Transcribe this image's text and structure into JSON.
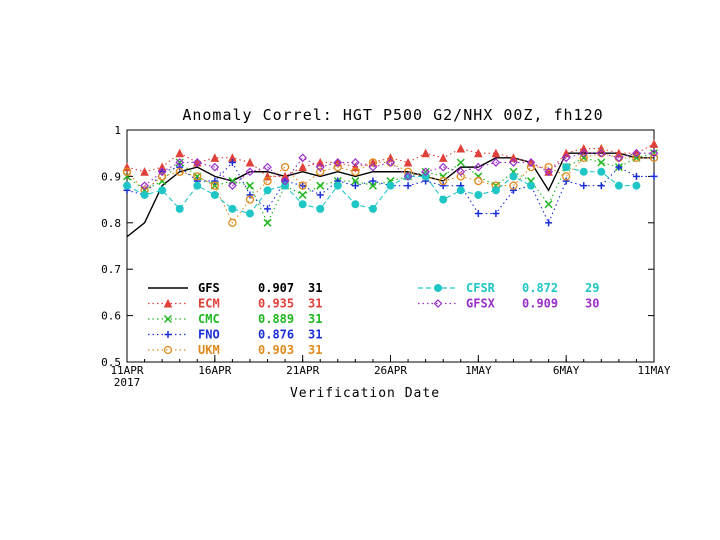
{
  "chart_data": {
    "type": "line",
    "title": "Anomaly Correl: HGT P500 G2/NHX 00Z, fh120",
    "xlabel": "Verification Date",
    "ylabel": "",
    "ylim": [
      0.5,
      1.0
    ],
    "yticks": [
      "0.5",
      "0.6",
      "0.7",
      "0.8",
      "0.9",
      "1"
    ],
    "x_ticks": [
      {
        "day": 0,
        "label": "11APR",
        "sublabel": "2017"
      },
      {
        "day": 5,
        "label": "16APR"
      },
      {
        "day": 10,
        "label": "21APR"
      },
      {
        "day": 15,
        "label": "26APR"
      },
      {
        "day": 20,
        "label": "1MAY"
      },
      {
        "day": 25,
        "label": "6MAY"
      },
      {
        "day": 30,
        "label": "11MAY"
      }
    ],
    "x": [
      0,
      1,
      2,
      3,
      4,
      5,
      6,
      7,
      8,
      9,
      10,
      11,
      12,
      13,
      14,
      15,
      16,
      17,
      18,
      19,
      20,
      21,
      22,
      23,
      24,
      25,
      26,
      27,
      28,
      29,
      30
    ],
    "series": [
      {
        "name": "GFS",
        "mean": "0.907",
        "count": "31",
        "color": "#000000",
        "marker": "none",
        "dash": "solid",
        "values": [
          0.77,
          0.8,
          0.88,
          0.91,
          0.92,
          0.9,
          0.89,
          0.91,
          0.91,
          0.9,
          0.91,
          0.9,
          0.91,
          0.9,
          0.91,
          0.91,
          0.91,
          0.9,
          0.89,
          0.92,
          0.92,
          0.94,
          0.94,
          0.93,
          0.87,
          0.95,
          0.95,
          0.95,
          0.95,
          0.94,
          0.94
        ]
      },
      {
        "name": "ECM",
        "mean": "0.935",
        "count": "31",
        "color": "#e0403a",
        "marker": "triangle",
        "dash": "dotted",
        "values": [
          0.92,
          0.91,
          0.92,
          0.95,
          0.93,
          0.94,
          0.94,
          0.93,
          0.9,
          0.9,
          0.92,
          0.93,
          0.93,
          0.92,
          0.93,
          0.94,
          0.93,
          0.95,
          0.94,
          0.96,
          0.95,
          0.95,
          0.94,
          0.93,
          0.91,
          0.95,
          0.96,
          0.96,
          0.95,
          0.95,
          0.97
        ]
      },
      {
        "name": "CMC",
        "mean": "0.889",
        "count": "31",
        "color": "#22b822",
        "marker": "x",
        "dash": "dotted",
        "values": [
          0.9,
          0.87,
          0.89,
          0.93,
          0.9,
          0.88,
          0.89,
          0.88,
          0.8,
          0.88,
          0.86,
          0.88,
          0.89,
          0.89,
          0.88,
          0.89,
          0.9,
          0.91,
          0.9,
          0.93,
          0.9,
          0.88,
          0.91,
          0.89,
          0.84,
          0.92,
          0.94,
          0.93,
          0.92,
          0.94,
          0.95
        ]
      },
      {
        "name": "FNO",
        "mean": "0.876",
        "count": "31",
        "color": "#1a2ed8",
        "marker": "plus",
        "dash": "dotted",
        "values": [
          0.87,
          0.86,
          0.91,
          0.92,
          0.89,
          0.89,
          0.93,
          0.86,
          0.83,
          0.89,
          0.88,
          0.86,
          0.89,
          0.88,
          0.89,
          0.88,
          0.88,
          0.89,
          0.88,
          0.88,
          0.82,
          0.82,
          0.87,
          0.88,
          0.8,
          0.89,
          0.88,
          0.88,
          0.92,
          0.9,
          0.9
        ]
      },
      {
        "name": "UKM",
        "mean": "0.903",
        "count": "31",
        "color": "#e08a1e",
        "marker": "circle-open",
        "dash": "dotted",
        "values": [
          0.91,
          0.87,
          0.9,
          0.91,
          0.9,
          0.88,
          0.8,
          0.85,
          0.89,
          0.92,
          0.88,
          0.91,
          0.92,
          0.91,
          0.93,
          0.93,
          0.91,
          0.9,
          0.89,
          0.9,
          0.89,
          0.88,
          0.88,
          0.92,
          0.92,
          0.9,
          0.94,
          0.95,
          0.94,
          0.94,
          0.94
        ]
      },
      {
        "name": "CFSR",
        "mean": "0.872",
        "count": "29",
        "color": "#20c6c6",
        "marker": "circle-filled",
        "dash": "dashed",
        "values": [
          0.88,
          0.86,
          0.87,
          0.83,
          0.88,
          0.86,
          0.83,
          0.82,
          0.87,
          0.88,
          0.84,
          0.83,
          0.88,
          0.84,
          0.83,
          0.88,
          0.9,
          0.9,
          0.85,
          0.87,
          0.86,
          0.87,
          0.9,
          0.88,
          null,
          0.92,
          0.91,
          0.91,
          0.88,
          0.88,
          null
        ]
      },
      {
        "name": "GFSX",
        "mean": "0.909",
        "count": "30",
        "color": "#9a2ec8",
        "marker": "diamond-open",
        "dash": "dotted",
        "values": [
          null,
          0.88,
          0.91,
          0.93,
          0.93,
          0.92,
          0.88,
          0.91,
          0.92,
          0.89,
          0.94,
          0.92,
          0.93,
          0.93,
          0.92,
          0.93,
          0.9,
          0.91,
          0.92,
          0.91,
          0.92,
          0.93,
          0.93,
          0.93,
          0.91,
          0.94,
          0.95,
          0.95,
          0.94,
          0.95,
          0.95
        ]
      }
    ]
  }
}
